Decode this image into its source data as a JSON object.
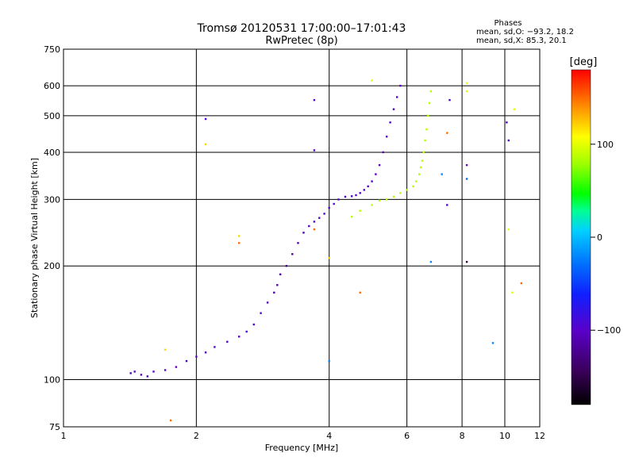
{
  "chart_data": {
    "type": "scatter",
    "title": "Tromsø 20120531 17:00:00–17:01:43",
    "subtitle": "RwPretec (8p)",
    "xlabel": "Frequency [MHz]",
    "ylabel": "Stationary phase Virtual Height [km]",
    "x_scale": "log",
    "y_scale": "log",
    "xlim": [
      1,
      12
    ],
    "ylim": [
      75,
      750
    ],
    "x_ticks": [
      1,
      2,
      4,
      6,
      8,
      10,
      12
    ],
    "x_tick_labels": [
      "1",
      "2",
      "4",
      "6",
      "8",
      "10",
      "12"
    ],
    "y_ticks": [
      75,
      100,
      200,
      300,
      400,
      500,
      600,
      750
    ],
    "y_tick_labels": [
      "75",
      "100",
      "200",
      "300",
      "400",
      "500",
      "600",
      "750"
    ],
    "grid": true,
    "phases_box": {
      "heading": "Phases",
      "line1": "mean, sd,O: −93.2, 18.2",
      "line2": "mean, sd,X:  85.3, 20.1"
    },
    "colorbar": {
      "label": "[deg]",
      "min": -180,
      "max": 180,
      "ticks": [
        100,
        0,
        -100
      ],
      "tick_labels": [
        "100",
        "0",
        "−100"
      ],
      "colormap": "rainbow"
    },
    "series": [
      {
        "mode": "O",
        "points": [
          [
            1.42,
            104,
            -110
          ],
          [
            1.45,
            105,
            -100
          ],
          [
            1.5,
            103,
            -105
          ],
          [
            1.55,
            102,
            -110
          ],
          [
            1.6,
            105,
            -100
          ],
          [
            1.7,
            106,
            -95
          ],
          [
            1.8,
            108,
            -100
          ],
          [
            1.9,
            112,
            -110
          ],
          [
            2.0,
            115,
            -100
          ],
          [
            2.1,
            118,
            -105
          ],
          [
            2.2,
            122,
            -100
          ],
          [
            2.35,
            126,
            -95
          ],
          [
            2.5,
            130,
            -100
          ],
          [
            2.6,
            134,
            -90
          ],
          [
            2.7,
            140,
            -95
          ],
          [
            2.8,
            150,
            -100
          ],
          [
            2.9,
            160,
            -105
          ],
          [
            3.0,
            170,
            -110
          ],
          [
            3.05,
            178,
            -115
          ],
          [
            3.1,
            190,
            -120
          ],
          [
            3.2,
            200,
            -125
          ],
          [
            3.3,
            215,
            -120
          ],
          [
            3.4,
            230,
            -115
          ],
          [
            3.5,
            245,
            -110
          ],
          [
            3.6,
            255,
            -105
          ],
          [
            3.7,
            262,
            -100
          ],
          [
            3.8,
            268,
            -100
          ],
          [
            3.9,
            275,
            -100
          ],
          [
            4.0,
            285,
            -100
          ],
          [
            4.1,
            292,
            -100
          ],
          [
            4.2,
            300,
            -100
          ],
          [
            4.35,
            305,
            -100
          ],
          [
            4.5,
            306,
            -100
          ],
          [
            4.6,
            308,
            -100
          ],
          [
            4.7,
            312,
            -100
          ],
          [
            4.8,
            318,
            -100
          ],
          [
            4.9,
            325,
            -100
          ],
          [
            5.0,
            335,
            -100
          ],
          [
            5.1,
            350,
            -100
          ],
          [
            5.2,
            370,
            -100
          ],
          [
            5.3,
            400,
            -100
          ],
          [
            5.4,
            440,
            -100
          ],
          [
            5.5,
            480,
            -100
          ],
          [
            5.6,
            520,
            -100
          ],
          [
            5.7,
            560,
            -100
          ],
          [
            5.8,
            600,
            -100
          ]
        ]
      },
      {
        "mode": "X",
        "points": [
          [
            4.5,
            270,
            85
          ],
          [
            4.7,
            280,
            85
          ],
          [
            5.0,
            290,
            85
          ],
          [
            5.2,
            298,
            85
          ],
          [
            5.4,
            300,
            85
          ],
          [
            5.6,
            305,
            85
          ],
          [
            5.8,
            312,
            85
          ],
          [
            6.0,
            318,
            85
          ],
          [
            6.2,
            325,
            85
          ],
          [
            6.3,
            335,
            85
          ],
          [
            6.4,
            350,
            85
          ],
          [
            6.45,
            365,
            85
          ],
          [
            6.5,
            380,
            85
          ],
          [
            6.55,
            400,
            85
          ],
          [
            6.6,
            430,
            85
          ],
          [
            6.65,
            460,
            85
          ],
          [
            6.7,
            500,
            85
          ],
          [
            6.75,
            540,
            85
          ],
          [
            6.8,
            580,
            85
          ]
        ]
      },
      {
        "mode": "scatter",
        "points": [
          [
            2.1,
            490,
            -100
          ],
          [
            2.1,
            420,
            120
          ],
          [
            3.7,
            550,
            -100
          ],
          [
            3.7,
            405,
            -100
          ],
          [
            5.0,
            620,
            100
          ],
          [
            8.2,
            580,
            100
          ],
          [
            8.2,
            610,
            100
          ],
          [
            7.5,
            550,
            -100
          ],
          [
            7.4,
            450,
            150
          ],
          [
            7.4,
            290,
            -100
          ],
          [
            7.2,
            350,
            -20
          ],
          [
            8.2,
            340,
            -30
          ],
          [
            8.2,
            370,
            -100
          ],
          [
            8.2,
            205,
            -150
          ],
          [
            10.2,
            430,
            -100
          ],
          [
            10.1,
            480,
            -100
          ],
          [
            10.2,
            250,
            100
          ],
          [
            10.5,
            520,
            100
          ],
          [
            10.9,
            180,
            150
          ],
          [
            10.4,
            170,
            100
          ],
          [
            9.4,
            125,
            -20
          ],
          [
            4.7,
            170,
            150
          ],
          [
            6.8,
            205,
            -20
          ],
          [
            4.0,
            210,
            120
          ],
          [
            3.7,
            250,
            150
          ],
          [
            1.75,
            78,
            150
          ],
          [
            4.0,
            112,
            -20
          ],
          [
            1.7,
            120,
            120
          ],
          [
            2.5,
            240,
            120
          ],
          [
            2.5,
            230,
            150
          ]
        ]
      }
    ]
  }
}
